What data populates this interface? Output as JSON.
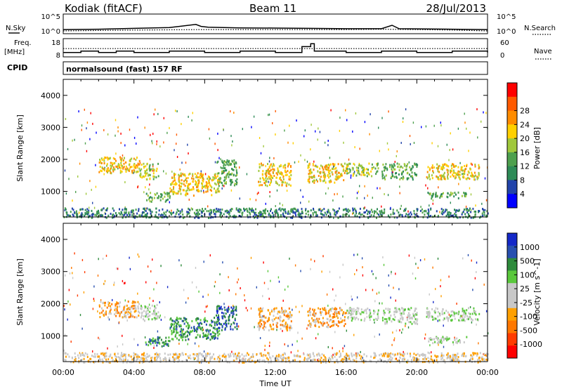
{
  "header": {
    "station": "Kodiak (fitACF)",
    "beam": "Beam 11",
    "date": "28/Jul/2013"
  },
  "noise_panel": {
    "left_label": "N.Sky",
    "right_label": "N.Search",
    "left_ticks": [
      "10^5",
      "10^0"
    ],
    "right_ticks": [
      "10^5",
      "10^0"
    ]
  },
  "freq_panel": {
    "left_label": "Freq.",
    "left_unit": "[MHz]",
    "right_label": "Nave",
    "left_ticks": [
      "18",
      "8"
    ],
    "right_ticks": [
      "60",
      "0"
    ]
  },
  "cpid": {
    "label": "CPID",
    "value": "normalsound (fast) 157 RF"
  },
  "colors": {
    "power_scale": [
      "#0000ff",
      "#2244aa",
      "#2e8b57",
      "#4ea04e",
      "#a0c83c",
      "#ffd000",
      "#ff8c00",
      "#ff5a00",
      "#ff0000"
    ],
    "velocity_scale": [
      "#1428c8",
      "#2850b0",
      "#2e8b3c",
      "#5ac83c",
      "#c8c8c8",
      "#c8c8c8",
      "#ffa000",
      "#ff7800",
      "#ff3c00",
      "#ff0000"
    ],
    "axis": "#000000",
    "background": "#ffffff"
  },
  "chart_data": [
    {
      "type": "line",
      "panel": "noise",
      "x_range": [
        "00:00",
        "24:00"
      ],
      "series": [
        {
          "name": "N.Sky",
          "style": "solid",
          "x_hours": [
            0,
            2,
            4,
            6,
            7.5,
            7.8,
            8.2,
            10,
            12,
            14,
            16,
            18,
            18.6,
            19,
            22,
            24
          ],
          "values": [
            3,
            4,
            8,
            15,
            200,
            40,
            20,
            12,
            10,
            8,
            6,
            6,
            100,
            6,
            4,
            3
          ]
        },
        {
          "name": "N.Search",
          "style": "dotted",
          "x_hours": [
            0,
            4,
            8,
            12,
            16,
            18,
            20,
            22,
            24
          ],
          "values": [
            1,
            2,
            3,
            3,
            3,
            4,
            3,
            2,
            1
          ]
        }
      ],
      "scale": "log",
      "ylim": [
        1,
        100000
      ]
    },
    {
      "type": "line",
      "panel": "frequency",
      "x_range": [
        "00:00",
        "24:00"
      ],
      "series": [
        {
          "name": "Freq.",
          "style": "solid",
          "x_hours": [
            0,
            1,
            2,
            3,
            4,
            6,
            8,
            10,
            12,
            13.5,
            14,
            14.2,
            16,
            18,
            20,
            22,
            24
          ],
          "values": [
            10,
            11,
            10,
            11,
            10,
            11,
            10,
            11,
            10,
            14,
            16,
            11,
            10,
            11,
            10,
            11,
            10
          ]
        },
        {
          "name": "Nave",
          "style": "dotted",
          "x_hours": [
            0,
            24
          ],
          "values": [
            28,
            28
          ]
        }
      ],
      "ylim_freq": [
        8,
        18
      ],
      "ylim_nave": [
        0,
        60
      ]
    },
    {
      "type": "heatmap",
      "panel": "power",
      "title": "Power [dB]",
      "xlabel": "",
      "ylabel": "Slant Range [km]",
      "x_range_hours": [
        0,
        24
      ],
      "ylim": [
        200,
        4500
      ],
      "y_ticks": [
        1000,
        2000,
        3000,
        4000
      ],
      "colorbar_ticks": [
        4,
        8,
        12,
        16,
        20,
        24,
        28
      ],
      "colorbar_range": [
        0,
        32
      ],
      "echo_regions": [
        {
          "t_start": 2.0,
          "t_end": 4.3,
          "range_low": 1600,
          "range_high": 2100,
          "value": 20
        },
        {
          "t_start": 4.3,
          "t_end": 5.4,
          "range_low": 1400,
          "range_high": 1900,
          "value": 14
        },
        {
          "t_start": 4.6,
          "t_end": 6.0,
          "range_low": 700,
          "range_high": 1000,
          "value": 10
        },
        {
          "t_start": 6.0,
          "t_end": 8.8,
          "range_low": 900,
          "range_high": 1600,
          "value": 18
        },
        {
          "t_start": 8.6,
          "t_end": 9.8,
          "range_low": 1200,
          "range_high": 2000,
          "value": 10
        },
        {
          "t_start": 11.0,
          "t_end": 12.9,
          "range_low": 1200,
          "range_high": 1900,
          "value": 18
        },
        {
          "t_start": 13.8,
          "t_end": 16.0,
          "range_low": 1300,
          "range_high": 1900,
          "value": 20
        },
        {
          "t_start": 16.0,
          "t_end": 17.8,
          "range_low": 1500,
          "range_high": 1900,
          "value": 14
        },
        {
          "t_start": 18.0,
          "t_end": 20.0,
          "range_low": 1400,
          "range_high": 1900,
          "value": 12
        },
        {
          "t_start": 20.5,
          "t_end": 23.5,
          "range_low": 1400,
          "range_high": 1900,
          "value": 18
        },
        {
          "t_start": 20.6,
          "t_end": 22.8,
          "range_low": 800,
          "range_high": 1000,
          "value": 12
        },
        {
          "t_start": 0.0,
          "t_end": 24.0,
          "range_low": 200,
          "range_high": 500,
          "value": 6
        }
      ]
    },
    {
      "type": "heatmap",
      "panel": "velocity",
      "title": "Velocity [m s^-1]",
      "xlabel": "Time UT",
      "ylabel": "Slant Range [km]",
      "x_range_hours": [
        0,
        24
      ],
      "x_ticks": [
        "00:00",
        "04:00",
        "08:00",
        "12:00",
        "16:00",
        "20:00",
        "00:00"
      ],
      "ylim": [
        200,
        4500
      ],
      "y_ticks": [
        1000,
        2000,
        3000,
        4000
      ],
      "colorbar_ticks": [
        1000,
        500,
        100,
        25,
        -25,
        -100,
        -500,
        -1000
      ],
      "echo_regions": [
        {
          "t_start": 2.0,
          "t_end": 4.3,
          "range_low": 1600,
          "range_high": 2100,
          "value": -150
        },
        {
          "t_start": 4.3,
          "t_end": 5.4,
          "range_low": 1500,
          "range_high": 2000,
          "value": 20
        },
        {
          "t_start": 4.6,
          "t_end": 6.0,
          "range_low": 700,
          "range_high": 1000,
          "value": 300
        },
        {
          "t_start": 6.0,
          "t_end": 8.8,
          "range_low": 900,
          "range_high": 1600,
          "value": 400
        },
        {
          "t_start": 8.6,
          "t_end": 9.8,
          "range_low": 1200,
          "range_high": 2000,
          "value": 600
        },
        {
          "t_start": 11.0,
          "t_end": 12.9,
          "range_low": 1200,
          "range_high": 1900,
          "value": -200
        },
        {
          "t_start": 13.8,
          "t_end": 16.0,
          "range_low": 1300,
          "range_high": 1900,
          "value": -400
        },
        {
          "t_start": 16.0,
          "t_end": 17.8,
          "range_low": 1500,
          "range_high": 1900,
          "value": 0
        },
        {
          "t_start": 18.0,
          "t_end": 20.0,
          "range_low": 1400,
          "range_high": 1900,
          "value": 0
        },
        {
          "t_start": 20.5,
          "t_end": 23.5,
          "range_low": 1500,
          "range_high": 1900,
          "value": 0
        },
        {
          "t_start": 20.6,
          "t_end": 22.8,
          "range_low": 800,
          "range_high": 1000,
          "value": 0
        },
        {
          "t_start": 0.0,
          "t_end": 24.0,
          "range_low": 200,
          "range_high": 500,
          "value": -60
        }
      ]
    }
  ]
}
